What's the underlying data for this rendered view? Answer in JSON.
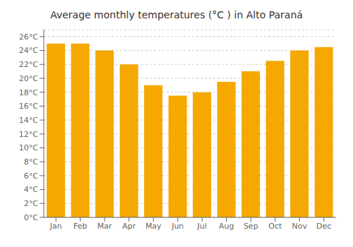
{
  "chart_data": {
    "type": "bar",
    "title": "Average monthly temperatures (°C ) in Alto Paraná",
    "categories": [
      "Jan",
      "Feb",
      "Mar",
      "Apr",
      "May",
      "Jun",
      "Jul",
      "Aug",
      "Sep",
      "Oct",
      "Nov",
      "Dec"
    ],
    "values": [
      25.0,
      25.0,
      24.0,
      22.0,
      19.0,
      17.5,
      18.0,
      19.5,
      21.0,
      22.5,
      24.0,
      24.5
    ],
    "color": "#F5A800",
    "ylim": [
      0,
      27
    ],
    "yticks": [
      {
        "value": 0,
        "label": "0°C"
      },
      {
        "value": 2,
        "label": "2°C"
      },
      {
        "value": 4,
        "label": "4°C"
      },
      {
        "value": 6,
        "label": "6°C"
      },
      {
        "value": 8,
        "label": "8°C"
      },
      {
        "value": 10,
        "label": "10°C"
      },
      {
        "value": 12,
        "label": "12°C"
      },
      {
        "value": 14,
        "label": "14°C"
      },
      {
        "value": 16,
        "label": "16°C"
      },
      {
        "value": 18,
        "label": "18°C"
      },
      {
        "value": 20,
        "label": "20°C"
      },
      {
        "value": 22,
        "label": "22°C"
      },
      {
        "value": 24,
        "label": "24°C"
      },
      {
        "value": 26,
        "label": "26°C"
      }
    ],
    "grid": true
  }
}
